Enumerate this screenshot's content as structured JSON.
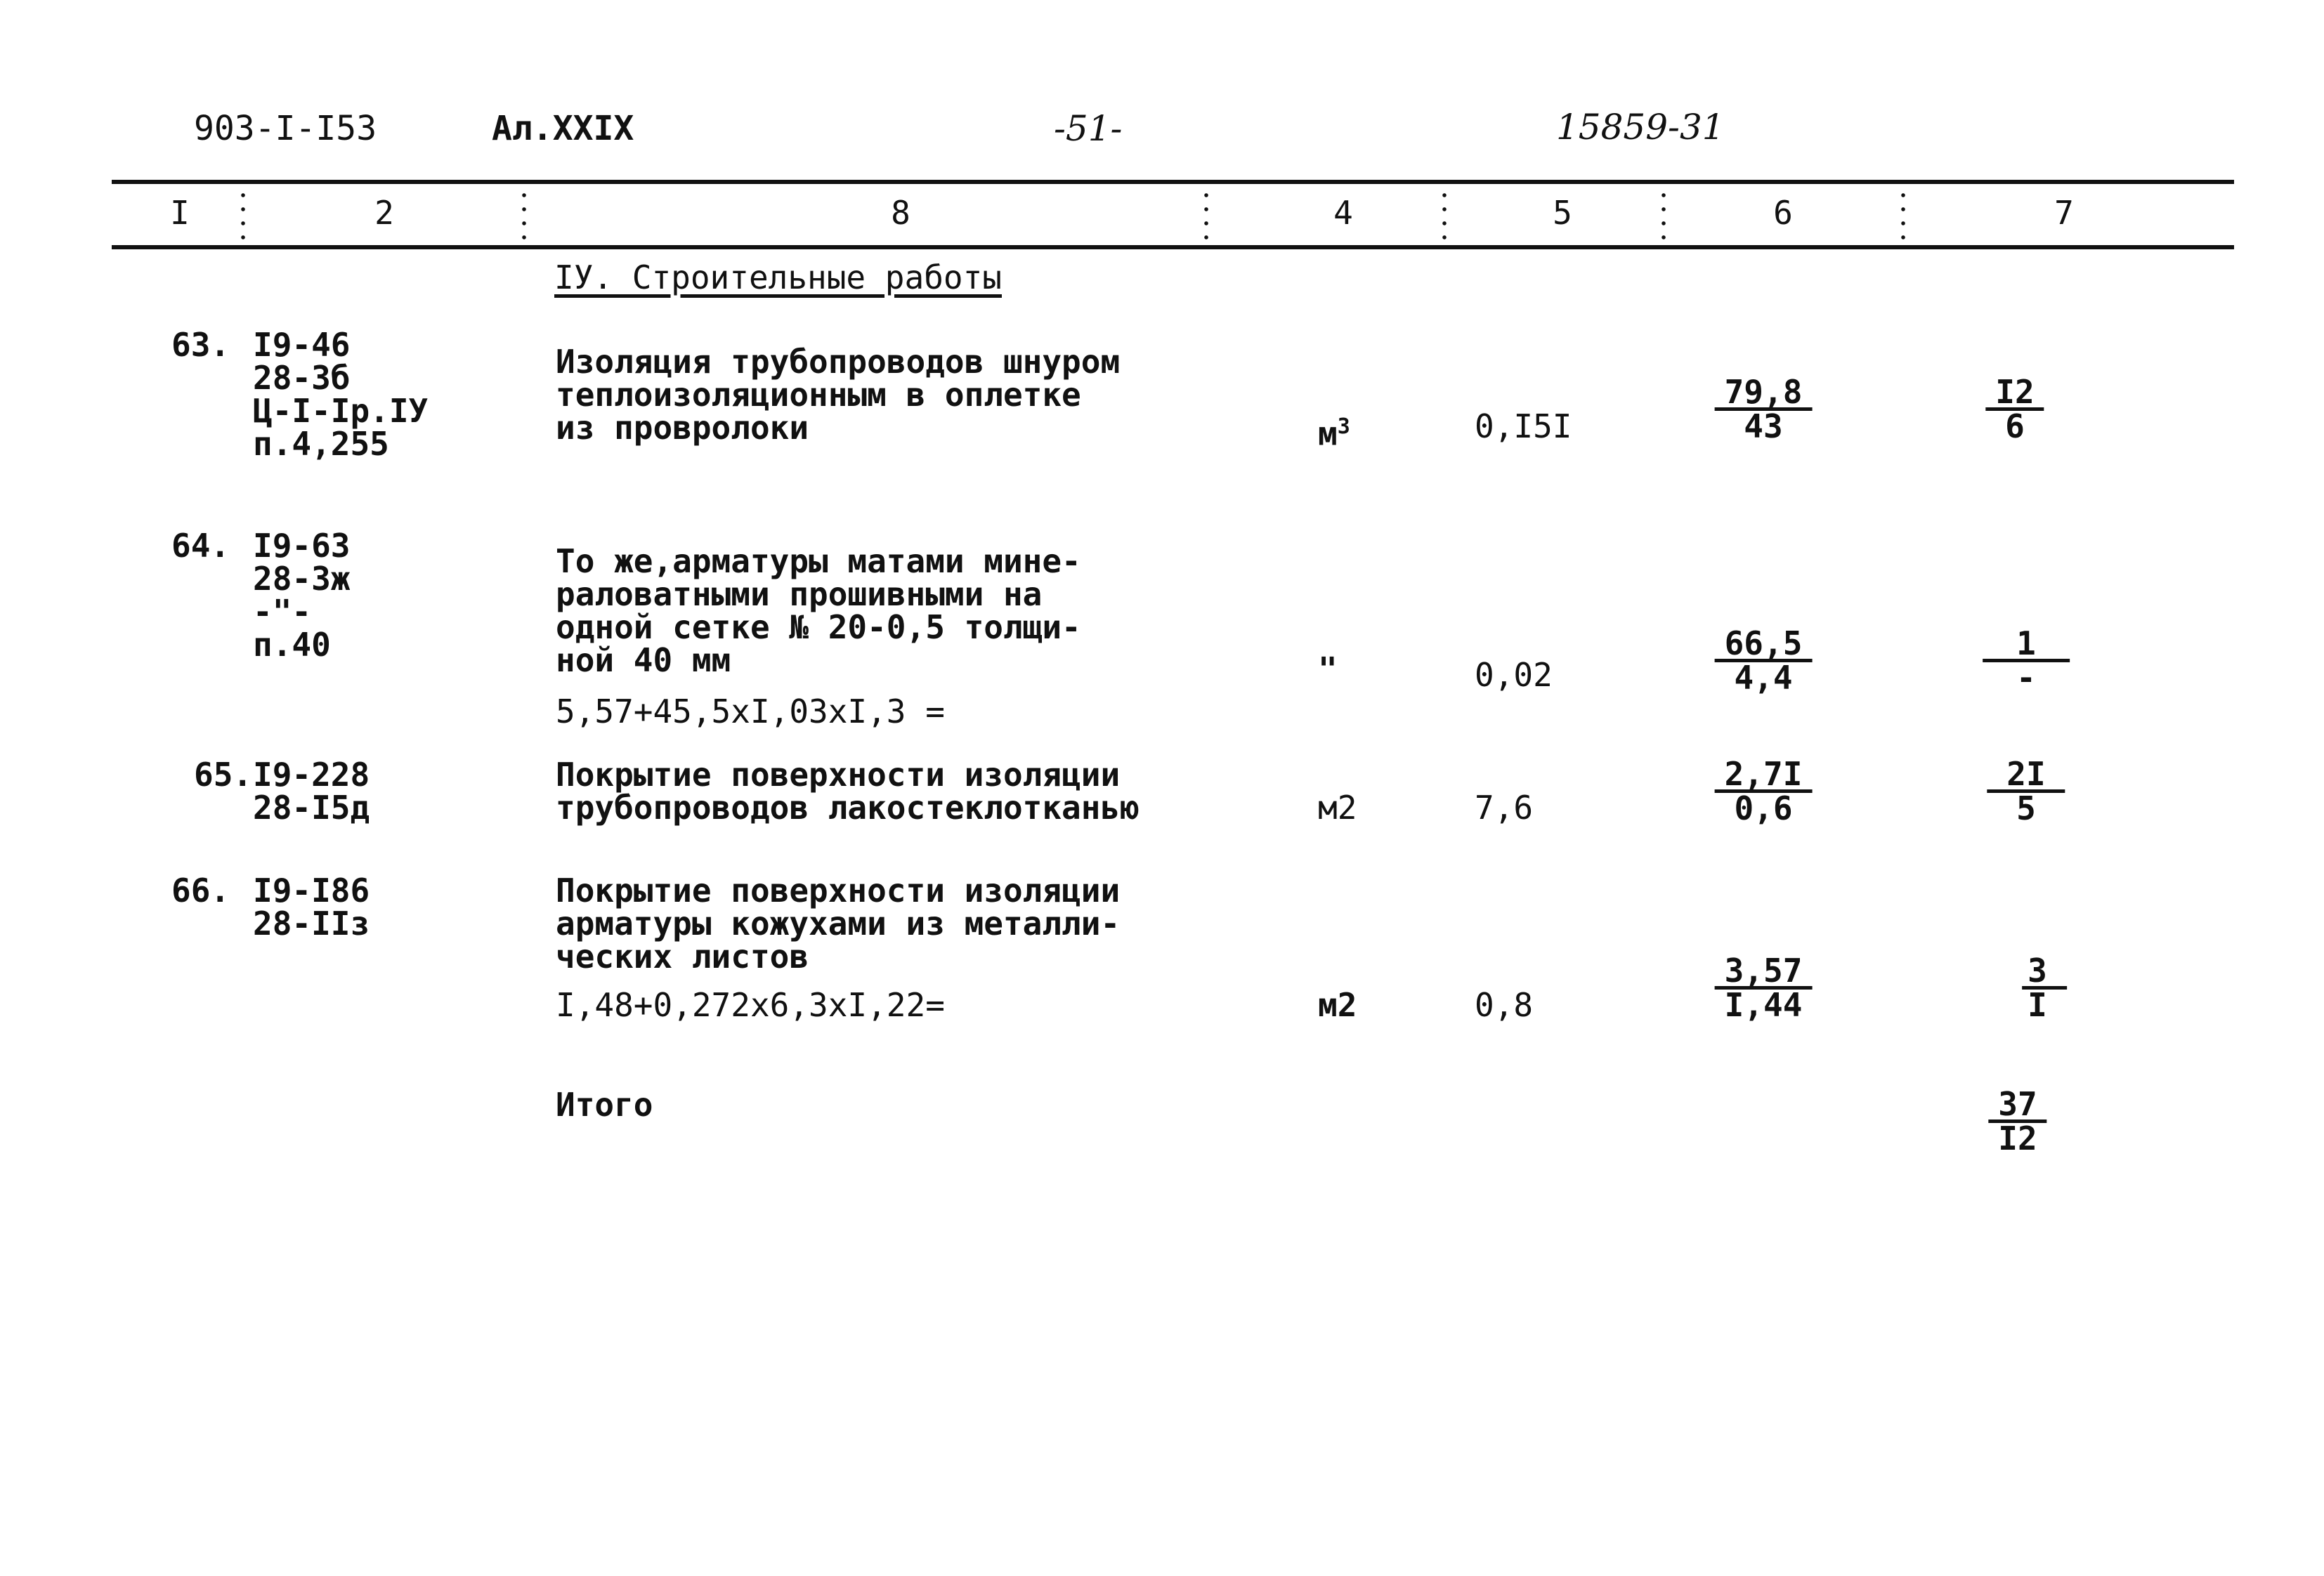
{
  "top": {
    "doc_code": "903-I-I53",
    "album": "Ал.XXIX",
    "page": "-51-",
    "inv": "15859-31"
  },
  "columns": [
    "I",
    "2",
    "8",
    "4",
    "5",
    "6",
    "7"
  ],
  "section_title": "IУ. Строительные работы",
  "rows": [
    {
      "num": "63.",
      "code": [
        "I9-46",
        "28-3б",
        "Ц-I-Iр.IУ",
        "п.4,255"
      ],
      "desc": [
        "Изоляция трубопроводов шнуром",
        "теплоизоляционным в оплетке",
        "из провролоки"
      ],
      "formula": "",
      "unit": "м",
      "unit_sup": "3",
      "qty": "0,I5I",
      "c6": [
        "79,8",
        "43"
      ],
      "c7": [
        "I2",
        "6"
      ]
    },
    {
      "num": "64.",
      "code": [
        "I9-63",
        "28-3ж",
        "-\"-",
        "п.40"
      ],
      "desc": [
        "То же,арматуры матами мине-",
        "раловатными прошивными на",
        "одной сетке № 20-0,5 толщи-",
        "ной 40 мм"
      ],
      "formula": "5,57+45,5xI,03xI,3 =",
      "unit": "\"",
      "unit_sup": "",
      "qty": "0,02",
      "c6": [
        "66,5",
        "4,4"
      ],
      "c7": [
        "1",
        "-"
      ]
    },
    {
      "num": "65.",
      "code": [
        "I9-228",
        "28-I5д"
      ],
      "desc": [
        "Покрытие поверхности изоляции",
        "трубопроводов лакостеклотканью"
      ],
      "formula": "",
      "unit": "м2",
      "unit_sup": "",
      "qty": "7,6",
      "c6": [
        "2,7I",
        "0,6"
      ],
      "c7": [
        "2I",
        "5"
      ]
    },
    {
      "num": "66.",
      "code": [
        "I9-I86",
        "28-IIз"
      ],
      "desc": [
        "Покрытие поверхности изоляции",
        "арматуры кожухами из металли-",
        "ческих листов"
      ],
      "formula": "I,48+0,272x6,3xI,22=",
      "unit": "м2",
      "unit_sup": "",
      "qty": "0,8",
      "c6": [
        "3,57",
        "I,44"
      ],
      "c7": [
        "3",
        "I"
      ]
    }
  ],
  "total": {
    "label": "Итого",
    "c7": [
      "37",
      "I2"
    ]
  }
}
